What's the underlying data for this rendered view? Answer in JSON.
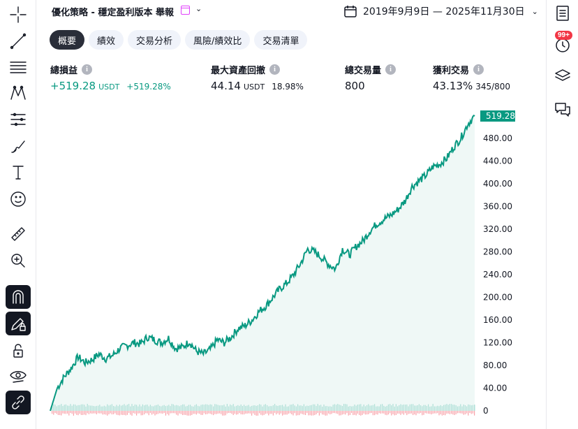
{
  "header": {
    "strategy_title": "優化策略 - 穩定盈利版本 舉報",
    "title_chevron": "⌄",
    "date_range": "2019年9月9日 — 2025年11月30日",
    "date_chevron": "⌄"
  },
  "tabs": [
    {
      "label": "概要",
      "active": true
    },
    {
      "label": "績效",
      "active": false
    },
    {
      "label": "交易分析",
      "active": false
    },
    {
      "label": "風險/績效比",
      "active": false
    },
    {
      "label": "交易清單",
      "active": false
    }
  ],
  "metrics": {
    "net_profit": {
      "label": "總損益",
      "value": "+519.28",
      "unit": "USDT",
      "percent": "+519.28%"
    },
    "max_drawdown": {
      "label": "最大資產回撤",
      "value": "44.14",
      "unit": "USDT",
      "percent": "18.98%"
    },
    "total_trades": {
      "label": "總交易量",
      "value": "800"
    },
    "profitable_trades": {
      "label": "獲利交易",
      "value": "43.13%",
      "ratio": "345/800"
    }
  },
  "info_glyph": "i",
  "right_sidebar": {
    "badge": "99+"
  },
  "colors": {
    "accent_green": "#089981",
    "loss_red": "#f7a1a8",
    "volume_teal": "#22ab94",
    "badge_red": "#f23645"
  },
  "chart_data": {
    "type": "area",
    "series": [
      {
        "name": "",
        "x_range": [
          "2019年9月9日",
          "2025年11月30日"
        ],
        "points": [
          [
            0,
            0
          ],
          [
            10,
            40
          ],
          [
            20,
            60
          ],
          [
            30,
            75
          ],
          [
            40,
            95
          ],
          [
            50,
            85
          ],
          [
            60,
            90
          ],
          [
            70,
            100
          ],
          [
            80,
            92
          ],
          [
            90,
            98
          ],
          [
            100,
            110
          ],
          [
            110,
            115
          ],
          [
            120,
            120
          ],
          [
            130,
            118
          ],
          [
            140,
            130
          ],
          [
            150,
            125
          ],
          [
            160,
            120
          ],
          [
            170,
            128
          ],
          [
            180,
            110
          ],
          [
            190,
            112
          ],
          [
            200,
            122
          ],
          [
            210,
            105
          ],
          [
            220,
            100
          ],
          [
            230,
            108
          ],
          [
            240,
            125
          ],
          [
            250,
            120
          ],
          [
            260,
            130
          ],
          [
            270,
            145
          ],
          [
            280,
            150
          ],
          [
            290,
            160
          ],
          [
            300,
            175
          ],
          [
            310,
            185
          ],
          [
            320,
            200
          ],
          [
            330,
            215
          ],
          [
            340,
            225
          ],
          [
            350,
            240
          ],
          [
            360,
            260
          ],
          [
            370,
            285
          ],
          [
            380,
            280
          ],
          [
            390,
            270
          ],
          [
            400,
            258
          ],
          [
            410,
            250
          ],
          [
            420,
            285
          ],
          [
            430,
            275
          ],
          [
            440,
            290
          ],
          [
            450,
            300
          ],
          [
            460,
            318
          ],
          [
            470,
            330
          ],
          [
            480,
            338
          ],
          [
            490,
            345
          ],
          [
            500,
            355
          ],
          [
            510,
            370
          ],
          [
            520,
            395
          ],
          [
            530,
            405
          ],
          [
            540,
            415
          ],
          [
            550,
            430
          ],
          [
            560,
            435
          ],
          [
            570,
            445
          ],
          [
            580,
            465
          ],
          [
            590,
            480
          ],
          [
            600,
            505
          ],
          [
            610,
            519.28
          ]
        ]
      }
    ],
    "ylim": [
      0,
      519.28
    ],
    "y_ticks": [
      "480.00",
      "440.00",
      "400.00",
      "360.00",
      "320.00",
      "280.00",
      "240.00",
      "200.00",
      "160.00",
      "120.00",
      "80.00",
      "40.00",
      "0"
    ],
    "last_value_label": "519.28",
    "grid": false,
    "volume_bars": true
  }
}
